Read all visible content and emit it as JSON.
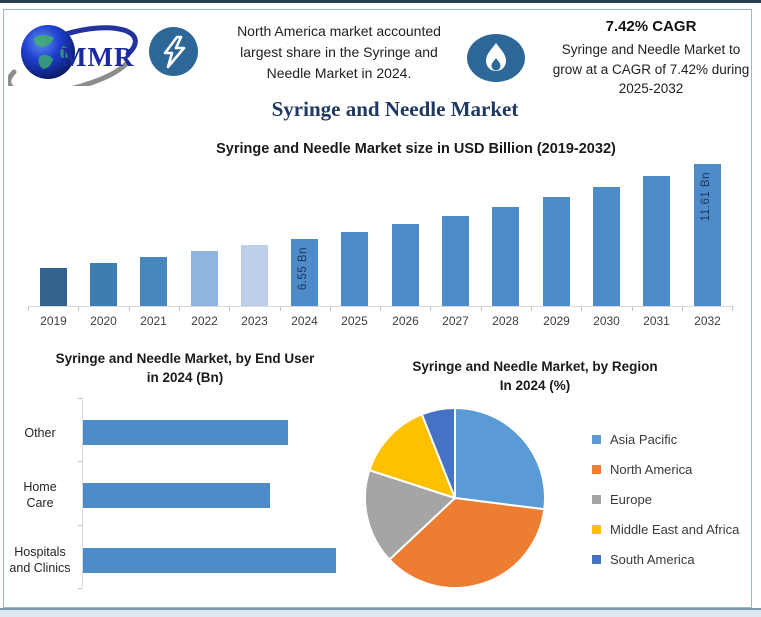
{
  "header": {
    "logo_text": "MMR",
    "highlight1": {
      "icon": "lightning",
      "text": "North America market accounted\nlargest share in the Syringe and\nNeedle Market in 2024."
    },
    "highlight2": {
      "icon": "flame",
      "title": "7.42% CAGR",
      "text": "Syringe and Needle Market to\ngrow at a CAGR of 7.42% during\n2025-2032"
    }
  },
  "page_title": "Syringe and Needle Market",
  "colors": {
    "accent_navy": "#1f3864",
    "icon_circle": "#2d6797",
    "primary_bar_blue": "#4f8bc9",
    "frame_border": "#9fb6c9"
  },
  "chart_data": [
    {
      "type": "bar",
      "title": "Syringe and Needle Market size in USD Billion (2019-2032)",
      "categories": [
        "2019",
        "2020",
        "2021",
        "2022",
        "2023",
        "2024",
        "2025",
        "2026",
        "2027",
        "2028",
        "2029",
        "2030",
        "2031",
        "2032"
      ],
      "values": [
        4.6,
        4.94,
        5.31,
        5.7,
        6.12,
        6.55,
        7.04,
        7.56,
        8.12,
        8.72,
        9.37,
        10.06,
        10.81,
        11.61
      ],
      "bar_colors": [
        "#35618e",
        "#3e7cb1",
        "#4a86be",
        "#8fb4e0",
        "#bdcfe8",
        "#4f8bc9",
        "#4f8bc9",
        "#4f8bc9",
        "#4f8bc9",
        "#4f8bc9",
        "#4f8bc9",
        "#4f8bc9",
        "#4f8bc9",
        "#4f8bc9"
      ],
      "data_labels": {
        "2024": "6.55 Bn",
        "2032": "11.61 Bn"
      },
      "xlabel": "",
      "ylabel": "",
      "ylim": [
        2,
        12.5
      ],
      "grid": false,
      "legend": false
    },
    {
      "type": "bar",
      "orientation": "horizontal",
      "title": "Syringe and Needle Market, by End User\nin 2024 (Bn)",
      "categories": [
        "Other",
        "Home\nCare",
        "Hospitals\nand Clinics"
      ],
      "values": [
        2.08,
        1.9,
        2.57
      ],
      "bar_color": "#4f8bc9",
      "xlim": [
        0,
        2.8
      ],
      "grid": false,
      "legend": false
    },
    {
      "type": "pie",
      "title": "Syringe and Needle Market, by Region\nIn 2024 (%)",
      "labels": [
        "Asia Pacific",
        "North America",
        "Europe",
        "Middle East and Africa",
        "South America"
      ],
      "values": [
        27,
        36,
        17,
        14,
        6
      ],
      "slice_colors": [
        "#5b9bd5",
        "#ed7d31",
        "#a5a5a5",
        "#ffc000",
        "#4472c4"
      ],
      "start_angle_deg": 0,
      "direction": "clockwise",
      "legend_position": "right"
    }
  ]
}
